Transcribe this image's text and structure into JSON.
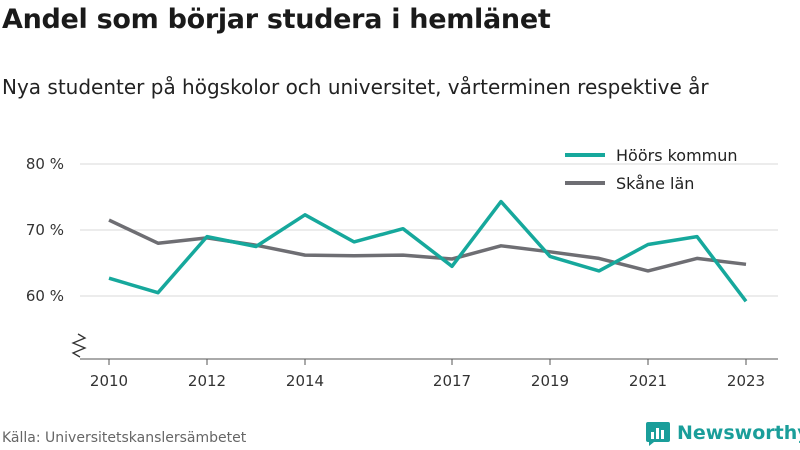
{
  "title": "Andel som börjar studera i hemlänet",
  "subtitle": "Nya studenter på högskolor och universitet, vårterminen respektive år",
  "source": "Källa: Universitetskanslersämbetet",
  "brand": {
    "name": "Newsworthy",
    "icon": "chart-bar-icon",
    "color": "#1a9e9a"
  },
  "chart_data": {
    "type": "line",
    "x": [
      2010,
      2011,
      2012,
      2013,
      2014,
      2015,
      2016,
      2017,
      2018,
      2019,
      2020,
      2021,
      2022,
      2023
    ],
    "x_tick_labels": [
      "2010",
      "2012",
      "2014",
      "2017",
      "2019",
      "2021",
      "2023"
    ],
    "y_tick_labels": [
      "60 %",
      "70 %",
      "80 %"
    ],
    "y_ticks": [
      60,
      70,
      80
    ],
    "ylim": [
      50,
      80
    ],
    "axis_break": true,
    "grid": true,
    "legend_position": "top-right",
    "series": [
      {
        "name": "Höörs kommun",
        "color": "#16a89c",
        "values": [
          62.7,
          60.5,
          69.0,
          67.5,
          72.3,
          68.2,
          70.2,
          64.5,
          74.3,
          66.0,
          63.8,
          67.8,
          69.0,
          59.2
        ]
      },
      {
        "name": "Skåne län",
        "color": "#6e6e73",
        "values": [
          71.5,
          68.0,
          68.8,
          67.7,
          66.2,
          66.1,
          66.2,
          65.6,
          67.6,
          66.7,
          65.7,
          63.8,
          65.7,
          64.8
        ]
      }
    ]
  }
}
